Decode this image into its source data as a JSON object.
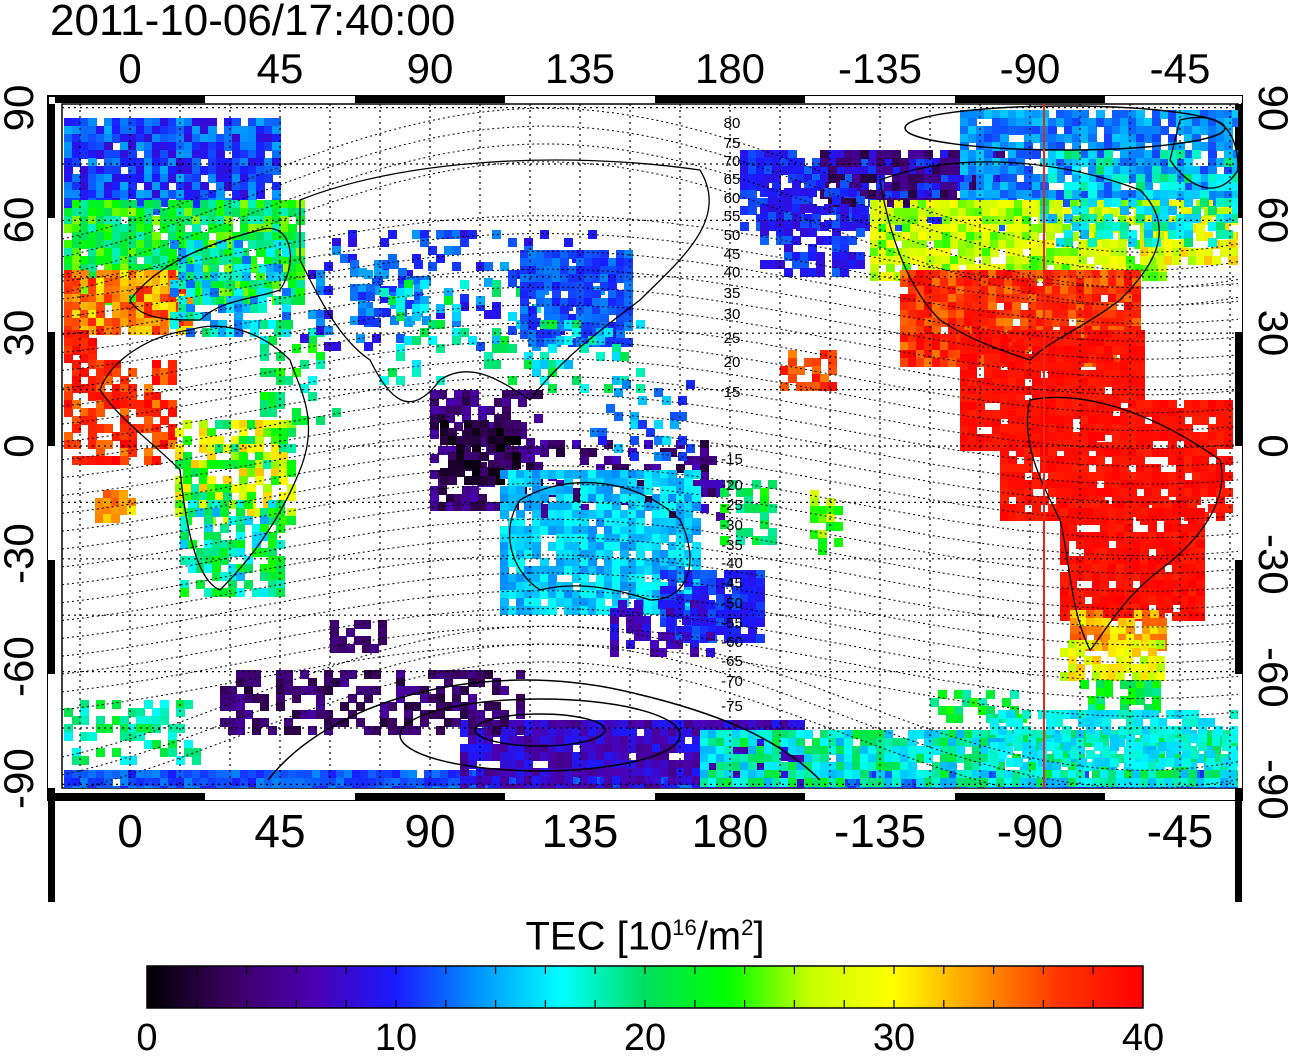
{
  "title": "2011-10-06/17:40:00",
  "map": {
    "lon_ticks_top": [
      "0",
      "45",
      "90",
      "135",
      "180",
      "-135",
      "-90",
      "-45"
    ],
    "lon_ticks_bottom": [
      "0",
      "45",
      "90",
      "135",
      "180",
      "-135",
      "-90",
      "-45"
    ],
    "lat_ticks_left": [
      "90",
      "60",
      "30",
      "0",
      "-30",
      "-60",
      "-90"
    ],
    "lat_ticks_right": [
      "90",
      "60",
      "30",
      "0",
      "-30",
      "-60",
      "-90"
    ],
    "contour_labels": [
      "80",
      "75",
      "70",
      "65",
      "60",
      "55",
      "50",
      "45",
      "40",
      "35",
      "30",
      "25",
      "20",
      "15",
      "-15",
      "-20",
      "-25",
      "-30",
      "-35",
      "-40",
      "-45",
      "-50",
      "-55",
      "-60",
      "-65",
      "-70",
      "-75"
    ],
    "terminator_color": "#e8241c",
    "coastline_color": "#000000"
  },
  "colorbar": {
    "title_main": "TEC  [10",
    "title_exp1": "16",
    "title_mid": "/m",
    "title_exp2": "2",
    "title_end": "]",
    "ticks": [
      "0",
      "10",
      "20",
      "30",
      "40"
    ],
    "colors": [
      "#000000",
      "#3a0060",
      "#4b00b0",
      "#1a1aff",
      "#0096ff",
      "#00ffff",
      "#00e060",
      "#00ff00",
      "#c8ff00",
      "#ffff00",
      "#ff9900",
      "#ff3300",
      "#ff0000"
    ]
  }
}
